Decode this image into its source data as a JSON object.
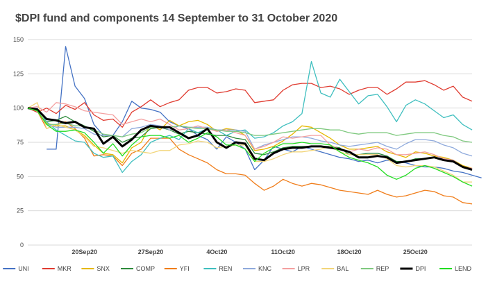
{
  "chart_data": {
    "type": "line",
    "title": "$DPI fund and components 14 September to 31 October 2020",
    "xlabel": "",
    "ylabel": "",
    "ylim": [
      0,
      150
    ],
    "yticks": [
      0,
      25,
      50,
      75,
      100,
      125,
      150
    ],
    "x_start": "2020-09-14",
    "x_end": "2020-10-31",
    "x_ticks": [
      {
        "date": "2020-09-20",
        "label": "20Sep20"
      },
      {
        "date": "2020-09-27",
        "label": "27Sep20"
      },
      {
        "date": "2020-10-04",
        "label": "4Oct20"
      },
      {
        "date": "2020-10-11",
        "label": "11Oct20"
      },
      {
        "date": "2020-10-18",
        "label": "18Oct20"
      },
      {
        "date": "2020-10-25",
        "label": "25Oct20"
      }
    ],
    "grid": true,
    "legend_position": "bottom",
    "series": [
      {
        "name": "UNI",
        "color": "#4472c4",
        "start_date": "2020-09-16",
        "values": [
          70,
          70,
          145,
          116,
          107,
          88,
          80,
          80,
          90,
          105,
          100,
          99,
          97,
          90,
          87,
          85,
          80,
          77,
          70,
          79,
          75,
          70,
          55,
          62,
          72,
          70,
          68,
          72,
          70,
          68,
          66,
          64,
          63,
          61,
          62,
          60,
          62,
          61,
          60,
          58,
          57,
          57,
          56,
          54,
          53,
          51,
          49
        ]
      },
      {
        "name": "MKR",
        "color": "#e03c31",
        "values": [
          100,
          97,
          100,
          96,
          102,
          99,
          104,
          95,
          91,
          92,
          86,
          97,
          101,
          106,
          101,
          104,
          106,
          113,
          115,
          115,
          111,
          112,
          114,
          113,
          104,
          105,
          106,
          113,
          117,
          118,
          118,
          115,
          116,
          114,
          110,
          113,
          115,
          115,
          110,
          114,
          119,
          119,
          120,
          117,
          113,
          116,
          108,
          105
        ]
      },
      {
        "name": "SNX",
        "color": "#e6b800",
        "values": [
          100,
          100,
          89,
          87,
          87,
          84,
          80,
          73,
          67,
          66,
          60,
          71,
          75,
          88,
          84,
          91,
          87,
          90,
          91,
          88,
          83,
          85,
          84,
          80,
          69,
          70,
          72,
          76,
          81,
          87,
          86,
          82,
          78,
          73,
          70,
          70,
          71,
          72,
          68,
          66,
          64,
          68,
          67,
          65,
          64,
          62,
          58,
          56
        ]
      },
      {
        "name": "COMP",
        "color": "#2e8b3c",
        "values": [
          100,
          99,
          90,
          91,
          94,
          90,
          87,
          83,
          79,
          80,
          75,
          78,
          79,
          85,
          86,
          84,
          81,
          83,
          82,
          81,
          80,
          80,
          78,
          77,
          67,
          66,
          68,
          71,
          72,
          72,
          72,
          72,
          72,
          71,
          66,
          66,
          67,
          67,
          65,
          61,
          61,
          63,
          63,
          64,
          63,
          62,
          57,
          55
        ]
      },
      {
        "name": "YFI",
        "color": "#f07d1a",
        "values": [
          100,
          98,
          85,
          88,
          90,
          85,
          78,
          65,
          66,
          65,
          58,
          67,
          70,
          78,
          78,
          78,
          70,
          66,
          63,
          60,
          55,
          52,
          52,
          51,
          45,
          40,
          43,
          48,
          45,
          43,
          45,
          44,
          42,
          40,
          39,
          38,
          37,
          40,
          37,
          35,
          36,
          38,
          40,
          39,
          36,
          35,
          31,
          30
        ]
      },
      {
        "name": "REN",
        "color": "#3fbfbf",
        "values": [
          100,
          100,
          90,
          84,
          80,
          76,
          75,
          67,
          64,
          65,
          53,
          61,
          66,
          75,
          78,
          80,
          77,
          85,
          82,
          85,
          84,
          80,
          83,
          84,
          78,
          79,
          82,
          87,
          90,
          96,
          134,
          111,
          108,
          121,
          112,
          103,
          109,
          110,
          101,
          90,
          102,
          106,
          103,
          98,
          93,
          95,
          88,
          84
        ]
      },
      {
        "name": "KNC",
        "color": "#8faadc",
        "values": [
          100,
          100,
          88,
          86,
          86,
          86,
          85,
          81,
          80,
          80,
          79,
          85,
          86,
          88,
          87,
          84,
          87,
          86,
          86,
          86,
          84,
          84,
          84,
          83,
          70,
          73,
          75,
          77,
          79,
          79,
          78,
          76,
          75,
          73,
          72,
          73,
          74,
          75,
          72,
          70,
          74,
          77,
          77,
          76,
          73,
          71,
          67,
          65
        ]
      },
      {
        "name": "LPR",
        "color": "#f4a0a0",
        "values": [
          100,
          101,
          97,
          104,
          103,
          101,
          98,
          97,
          96,
          95,
          88,
          90,
          92,
          90,
          92,
          88,
          84,
          85,
          87,
          85,
          83,
          84,
          82,
          80,
          70,
          72,
          75,
          79,
          78,
          79,
          80,
          80,
          73,
          70,
          68,
          70,
          69,
          71,
          70,
          66,
          66,
          67,
          68,
          66,
          63,
          62,
          57,
          56
        ]
      },
      {
        "name": "BAL",
        "color": "#f2d57a",
        "values": [
          100,
          104,
          85,
          88,
          86,
          84,
          79,
          72,
          71,
          69,
          67,
          69,
          68,
          67,
          69,
          69,
          73,
          74,
          76,
          75,
          71,
          72,
          73,
          73,
          61,
          61,
          63,
          66,
          68,
          68,
          69,
          70,
          72,
          68,
          66,
          66,
          66,
          66,
          63,
          58,
          57,
          58,
          58,
          57,
          54,
          51,
          46,
          46
        ]
      },
      {
        "name": "REP",
        "color": "#7fc97f",
        "values": [
          100,
          98,
          88,
          88,
          89,
          87,
          87,
          84,
          81,
          80,
          79,
          81,
          82,
          86,
          86,
          86,
          87,
          86,
          85,
          85,
          84,
          83,
          83,
          82,
          80,
          80,
          81,
          82,
          83,
          84,
          85,
          85,
          84,
          84,
          82,
          81,
          82,
          82,
          82,
          80,
          81,
          82,
          82,
          82,
          80,
          79,
          76,
          75
        ]
      },
      {
        "name": "DPI",
        "color": "#000000",
        "values": [
          100,
          99,
          92,
          91,
          89,
          90,
          86,
          85,
          74,
          79,
          72,
          77,
          84,
          87,
          86,
          86,
          82,
          78,
          80,
          85,
          75,
          71,
          75,
          74,
          63,
          62,
          67,
          70,
          71,
          71,
          72,
          72,
          71,
          70,
          68,
          64,
          64,
          65,
          64,
          60,
          61,
          62,
          63,
          64,
          62,
          61,
          57,
          55
        ]
      },
      {
        "name": "LEND",
        "color": "#22dd22",
        "values": [
          100,
          98,
          88,
          83,
          83,
          84,
          82,
          75,
          67,
          74,
          65,
          73,
          79,
          80,
          80,
          78,
          80,
          75,
          78,
          82,
          79,
          73,
          73,
          70,
          61,
          67,
          71,
          74,
          74,
          75,
          74,
          74,
          73,
          68,
          64,
          62,
          60,
          57,
          51,
          48,
          51,
          56,
          58,
          56,
          53,
          50,
          46,
          43
        ]
      }
    ]
  }
}
